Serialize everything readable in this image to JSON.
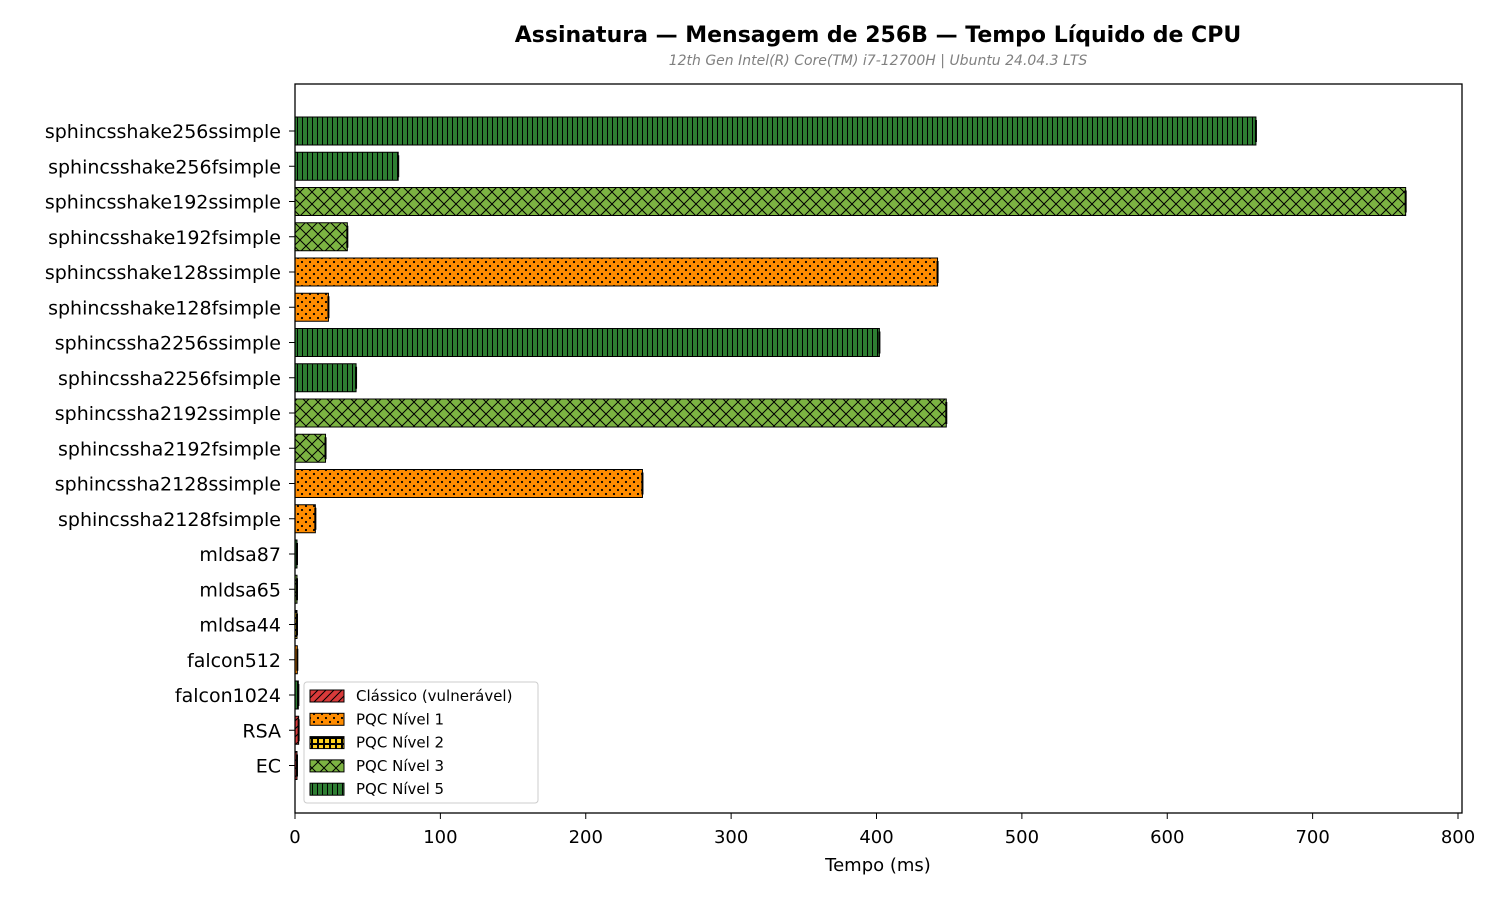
{
  "chart_data": {
    "type": "bar",
    "orientation": "horizontal",
    "title": "Assinatura — Mensagem de 256B — Tempo Líquido de CPU",
    "subtitle": "12th Gen Intel(R) Core(TM) i7-12700H | Ubuntu 24.04.3 LTS",
    "xlabel": "Tempo (ms)",
    "ylabel": "",
    "xlim": [
      0,
      800
    ],
    "xticks": [
      0,
      100,
      200,
      300,
      400,
      500,
      600,
      700,
      800
    ],
    "grid": false,
    "legend_position": "bottom-left",
    "legend": [
      {
        "key": "classico",
        "label": "Clássico (vulnerável)",
        "color": "#d83a3a",
        "pattern": "diag"
      },
      {
        "key": "n1",
        "label": "PQC Nível 1",
        "color": "#ff8c00",
        "pattern": "dots"
      },
      {
        "key": "n2",
        "label": "PQC Nível 2",
        "color": "#ffd21f",
        "pattern": "squares"
      },
      {
        "key": "n3",
        "label": "PQC Nível 3",
        "color": "#7cb342",
        "pattern": "cross"
      },
      {
        "key": "n5",
        "label": "PQC Nível 5",
        "color": "#2e7d32",
        "pattern": "vlines"
      }
    ],
    "bars": [
      {
        "category": "sphincsshake256ssimple",
        "value": 661,
        "group": "n5"
      },
      {
        "category": "sphincsshake256fsimple",
        "value": 71,
        "group": "n5"
      },
      {
        "category": "sphincsshake192ssimple",
        "value": 764,
        "group": "n3"
      },
      {
        "category": "sphincsshake192fsimple",
        "value": 36,
        "group": "n3"
      },
      {
        "category": "sphincsshake128ssimple",
        "value": 442,
        "group": "n1"
      },
      {
        "category": "sphincsshake128fsimple",
        "value": 23,
        "group": "n1"
      },
      {
        "category": "sphincssha2256ssimple",
        "value": 402,
        "group": "n5"
      },
      {
        "category": "sphincssha2256fsimple",
        "value": 42,
        "group": "n5"
      },
      {
        "category": "sphincssha2192ssimple",
        "value": 448,
        "group": "n3"
      },
      {
        "category": "sphincssha2192fsimple",
        "value": 21,
        "group": "n3"
      },
      {
        "category": "sphincssha2128ssimple",
        "value": 239,
        "group": "n1"
      },
      {
        "category": "sphincssha2128fsimple",
        "value": 14,
        "group": "n1"
      },
      {
        "category": "mldsa87",
        "value": 1.3,
        "group": "n5"
      },
      {
        "category": "mldsa65",
        "value": 1.0,
        "group": "n3"
      },
      {
        "category": "mldsa44",
        "value": 0.8,
        "group": "n2"
      },
      {
        "category": "falcon512",
        "value": 1.6,
        "group": "n1"
      },
      {
        "category": "falcon1024",
        "value": 2.3,
        "group": "n5"
      },
      {
        "category": "RSA",
        "value": 2.5,
        "group": "classico"
      },
      {
        "category": "EC",
        "value": 0.6,
        "group": "classico"
      }
    ]
  }
}
